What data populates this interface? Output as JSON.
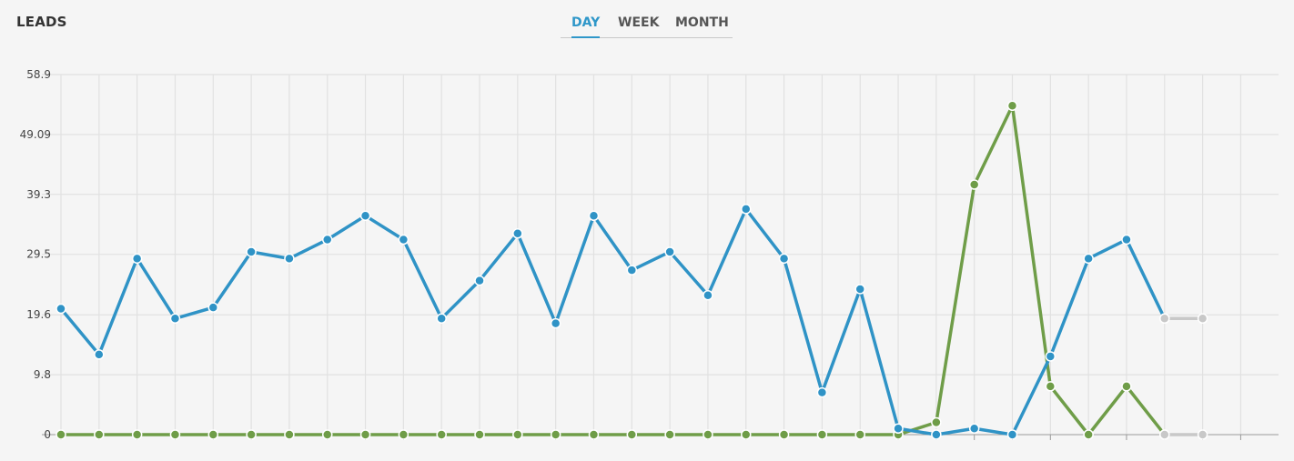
{
  "header": {
    "title": "LEADS"
  },
  "tabs": [
    {
      "label": "DAY",
      "active": true
    },
    {
      "label": "WEEK",
      "active": false
    },
    {
      "label": "MONTH",
      "active": false
    }
  ],
  "colors": {
    "blue_series": "#2f93c6",
    "green_series": "#6f9d48",
    "projection": "#c8c8c8",
    "grid": "#e1e1e1",
    "tab_active": "#2f97c9"
  },
  "chart_data": {
    "type": "line",
    "title": "LEADS",
    "xlabel": "",
    "ylabel": "",
    "ylim": [
      0,
      58.9
    ],
    "y_ticks": [
      "0",
      "9.8",
      "19.6",
      "29.5",
      "39.3",
      "49.09",
      "58.9"
    ],
    "grid": true,
    "legend": "none",
    "x": [
      1,
      2,
      3,
      4,
      5,
      6,
      7,
      8,
      9,
      10,
      11,
      12,
      13,
      14,
      15,
      16,
      17,
      18,
      19,
      20,
      21,
      22,
      23,
      24,
      25,
      26,
      27,
      28,
      29,
      30,
      31,
      32
    ],
    "series": [
      {
        "values": [
          20.6,
          13.1,
          28.8,
          19.0,
          20.8,
          29.9,
          28.8,
          31.9,
          35.8,
          31.9,
          19.0,
          25.2,
          32.9,
          18.2,
          35.8,
          26.9,
          29.9,
          22.8,
          36.9,
          28.8,
          6.9,
          23.8,
          1.0,
          0,
          1.0,
          0,
          12.8,
          28.8,
          31.9,
          19.0,
          null,
          null
        ]
      },
      {
        "values": [
          0,
          0,
          0,
          0,
          0,
          0,
          0,
          0,
          0,
          0,
          0,
          0,
          0,
          0,
          0,
          0,
          0,
          0,
          0,
          0,
          0,
          0,
          0,
          2.0,
          40.9,
          53.8,
          7.9,
          0,
          7.9,
          0,
          null,
          null
        ]
      },
      {
        "values": [
          null,
          null,
          null,
          null,
          null,
          null,
          null,
          null,
          null,
          null,
          null,
          null,
          null,
          null,
          null,
          null,
          null,
          null,
          null,
          null,
          null,
          null,
          null,
          null,
          null,
          null,
          null,
          null,
          null,
          19.0,
          19.0,
          null
        ]
      },
      {
        "values": [
          null,
          null,
          null,
          null,
          null,
          null,
          null,
          null,
          null,
          null,
          null,
          null,
          null,
          null,
          null,
          null,
          null,
          null,
          null,
          null,
          null,
          null,
          null,
          null,
          null,
          null,
          null,
          null,
          null,
          0,
          0,
          null
        ]
      }
    ]
  }
}
